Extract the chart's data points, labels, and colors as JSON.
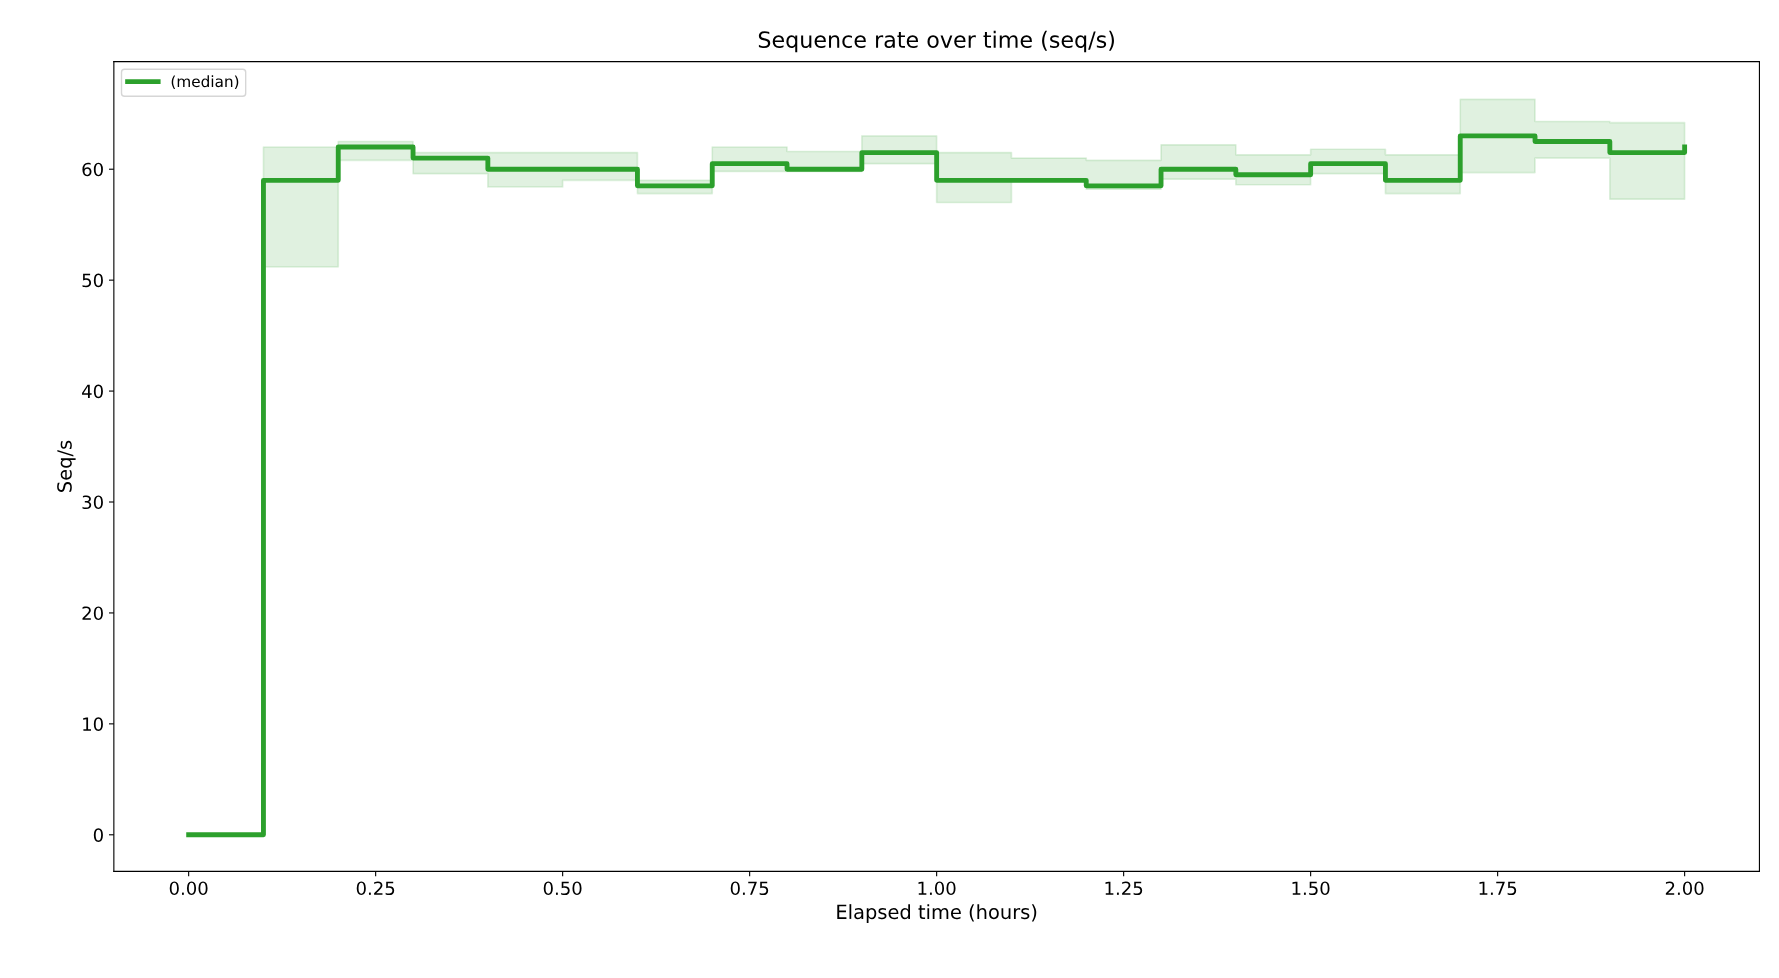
{
  "chart_data": {
    "type": "step",
    "title": "Sequence rate over time (seq/s)",
    "xlabel": "Elapsed time (hours)",
    "ylabel": "Seq/s",
    "x": [
      0,
      0.1,
      0.2,
      0.3,
      0.4,
      0.5,
      0.6,
      0.7,
      0.8,
      0.9,
      1.0,
      1.1,
      1.2,
      1.3,
      1.4,
      1.5,
      1.6,
      1.7,
      1.8,
      1.9,
      2.0
    ],
    "series": [
      {
        "name": "(median)",
        "color": "#2ca02c",
        "values": [
          0,
          59,
          62,
          61,
          60,
          60,
          58.5,
          60.5,
          60,
          61.5,
          59,
          59,
          58.5,
          60,
          59.5,
          60.5,
          59,
          63,
          62.5,
          61.5,
          62
        ],
        "lower": [
          0,
          51.2,
          60.8,
          59.6,
          58.4,
          59,
          57.8,
          59.8,
          59.8,
          60.5,
          57,
          59,
          58.2,
          59.1,
          58.6,
          59.6,
          57.8,
          59.7,
          61,
          57.3,
          57.3
        ],
        "upper": [
          0,
          62,
          62.5,
          61.5,
          61.5,
          61.5,
          59,
          62,
          61.6,
          63,
          61.5,
          61,
          60.8,
          62.2,
          61.3,
          61.8,
          61.3,
          66.3,
          64.3,
          64.2,
          64.2
        ]
      }
    ],
    "xlim": [
      -0.1,
      2.1
    ],
    "xticks": [
      {
        "value": 0,
        "label": "0.00"
      },
      {
        "value": 0.25,
        "label": "0.25"
      },
      {
        "value": 0.5,
        "label": "0.50"
      },
      {
        "value": 0.75,
        "label": "0.75"
      },
      {
        "value": 1.0,
        "label": "1.00"
      },
      {
        "value": 1.25,
        "label": "1.25"
      },
      {
        "value": 1.5,
        "label": "1.50"
      },
      {
        "value": 1.75,
        "label": "1.75"
      },
      {
        "value": 2.0,
        "label": "2.00"
      }
    ],
    "ylim": [
      -3.3,
      69.7
    ],
    "yticks": [
      0,
      10,
      20,
      30,
      40,
      50,
      60
    ],
    "legend": "top left",
    "grid": false
  }
}
